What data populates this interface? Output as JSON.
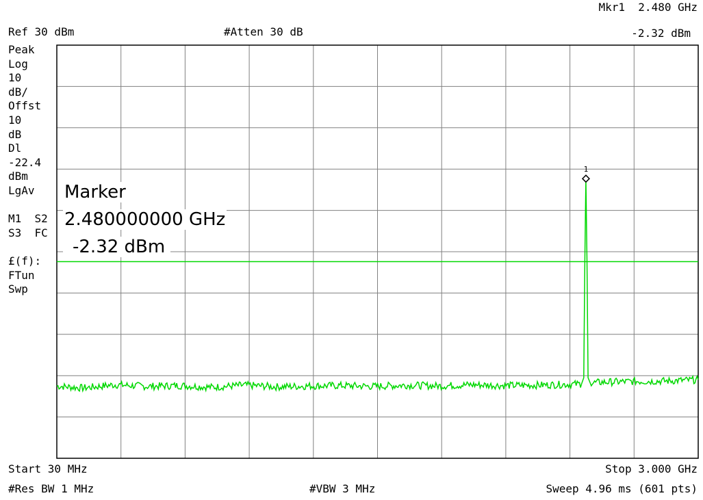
{
  "header": {
    "ref": "Ref 30 dBm",
    "atten": "#Atten 30 dB",
    "mkr_label": "Mkr1  2.480 GHz",
    "mkr_level": "-2.32 dBm"
  },
  "left_panel": {
    "lines": [
      "Peak",
      "Log",
      "10",
      "dB/",
      "Offst",
      "10",
      "dB",
      "Dl",
      "-22.4",
      "dBm",
      "LgAv",
      "",
      "M1  S2",
      "S3  FC",
      "",
      "£(f):",
      "FTun",
      "Swp"
    ]
  },
  "marker_box": {
    "title": "Marker",
    "freq": "2.480000000 GHz",
    "level": "-2.32 dBm"
  },
  "footer": {
    "start": "Start 30 MHz",
    "stop": "Stop 3.000 GHz",
    "rbw": "#Res BW 1 MHz",
    "vbw": "#VBW 3 MHz",
    "sweep": "Sweep 4.96 ms (601 pts)"
  },
  "colors": {
    "trace": "#00d800",
    "grid": "#808080",
    "frame": "#000000"
  },
  "chart_data": {
    "type": "line",
    "x_unit": "MHz",
    "y_unit": "dBm",
    "xlim": [
      30,
      3000
    ],
    "ylim": [
      -70,
      30
    ],
    "grid": true,
    "divisions": {
      "x": 10,
      "y": 10
    },
    "display_line_dbm": -22.4,
    "marker": {
      "id": "1",
      "x": 2480,
      "y": -2.32
    },
    "series": [
      {
        "x": [
          30,
          150,
          300,
          450,
          600,
          750,
          900,
          1050,
          1200,
          1350,
          1500,
          1650,
          1800,
          1950,
          2100,
          2250,
          2400,
          2460,
          2470,
          2475,
          2480,
          2485,
          2490,
          2500,
          2550,
          2700,
          2850,
          3000
        ],
        "y": [
          -52.5,
          -53.0,
          -52.2,
          -52.6,
          -52.4,
          -52.8,
          -52.3,
          -52.7,
          -52.5,
          -52.4,
          -52.6,
          -52.3,
          -52.5,
          -52.2,
          -52.4,
          -52.3,
          -52.1,
          -52.0,
          -50.5,
          -22.0,
          -2.32,
          -22.0,
          -50.5,
          -51.8,
          -51.6,
          -51.4,
          -51.3,
          -51.0
        ]
      }
    ]
  }
}
